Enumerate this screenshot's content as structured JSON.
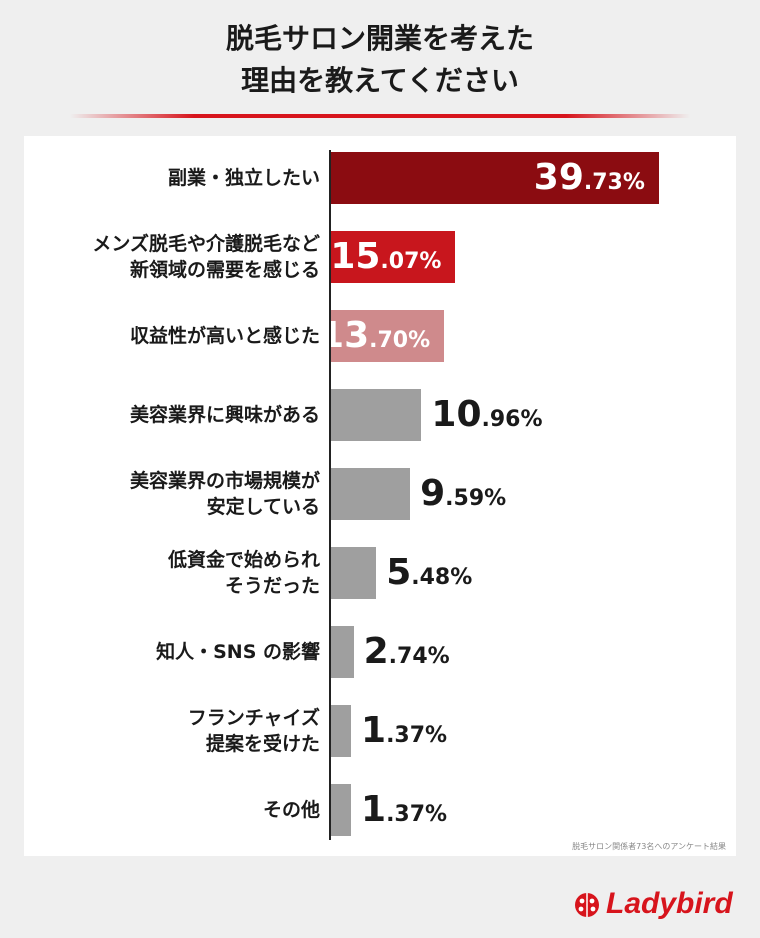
{
  "title_lines": [
    "脱毛サロン開業を考えた",
    "理由を教えてください"
  ],
  "source_note": "脱毛サロン関係者73名へのアンケート結果",
  "logo_text": "Ladybird",
  "colors": {
    "accent": "#d7141c",
    "bar_top1": "#8b0c11",
    "bar_top2": "#c8161d",
    "bar_top3": "#cf8a8c",
    "bar_other": "#9f9f9f",
    "panel": "#ffffff",
    "background": "#efefef"
  },
  "chart_data": {
    "type": "bar",
    "orientation": "horizontal",
    "value_unit": "%",
    "categories": [
      "副業・独立したい",
      "メンズ脱毛や介護脱毛など\n新領域の需要を感じる",
      "収益性が高いと感じた",
      "美容業界に興味がある",
      "美容業界の市場規模が\n安定している",
      "低資金で始められ\nそうだった",
      "知人・SNS の影響",
      "フランチャイズ\n提案を受けた",
      "その他"
    ],
    "values": [
      39.73,
      15.07,
      13.7,
      10.96,
      9.59,
      5.48,
      2.74,
      1.37,
      1.37
    ],
    "value_labels": [
      "39.73%",
      "15.07%",
      "13.70%",
      "10.96%",
      "9.59%",
      "5.48%",
      "2.74%",
      "1.37%",
      "1.37%"
    ],
    "grid": false,
    "legend": "none"
  }
}
